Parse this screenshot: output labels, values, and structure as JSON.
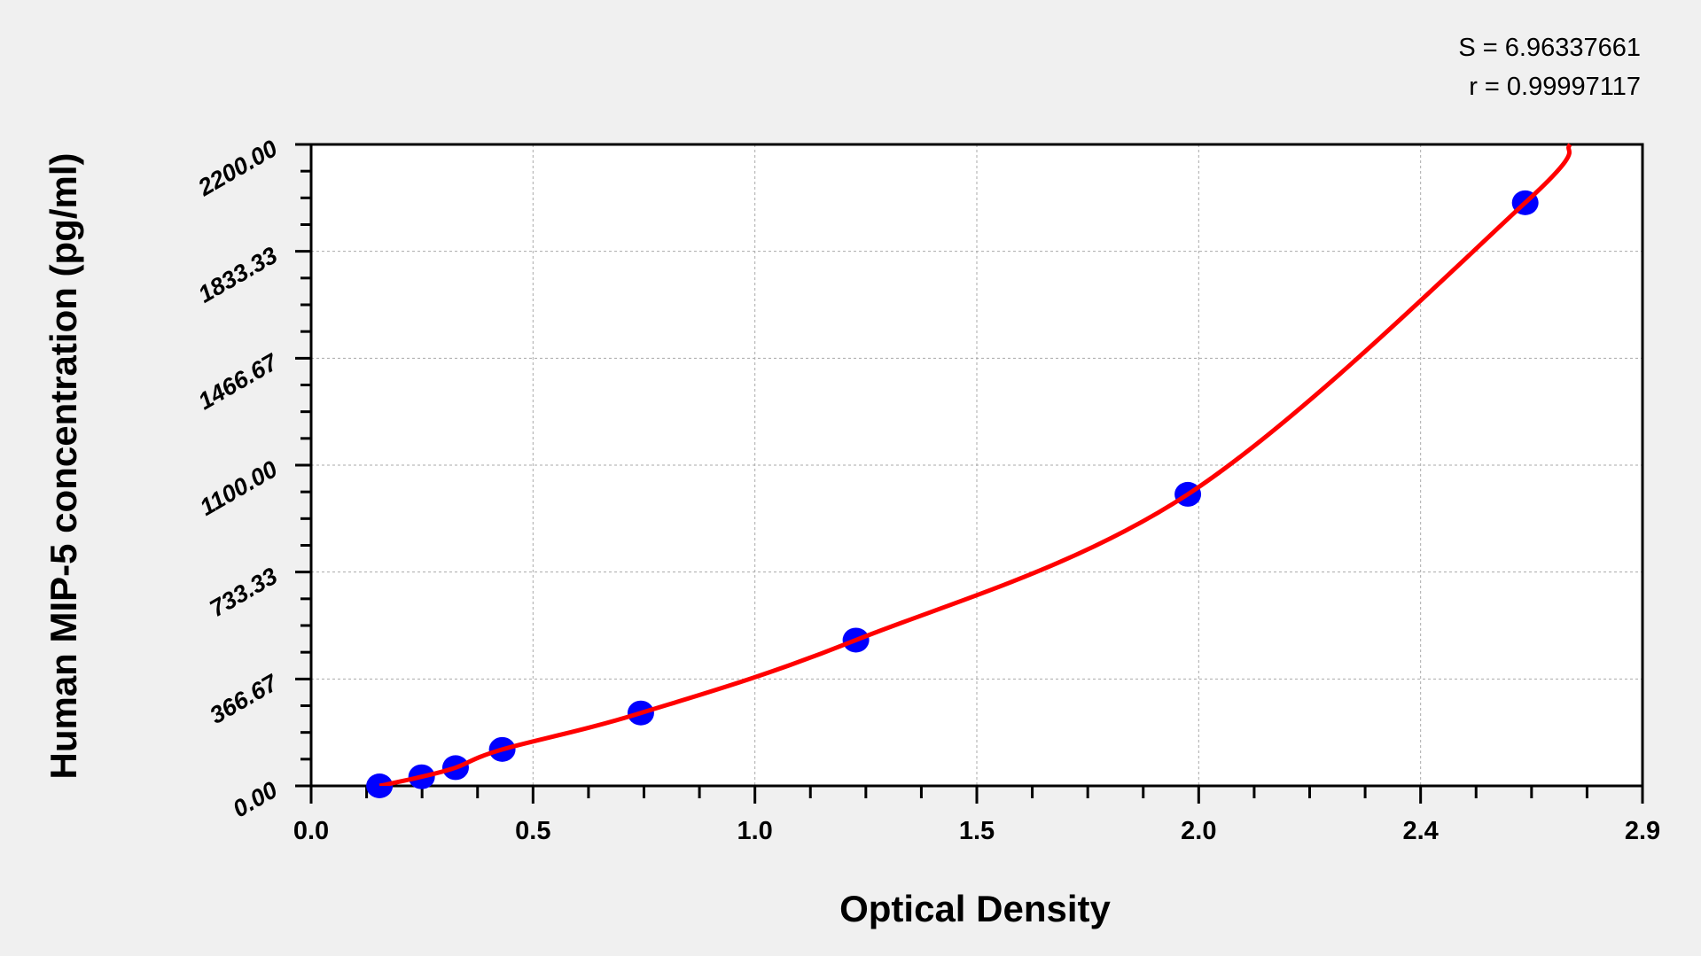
{
  "chart_data": {
    "type": "scatter",
    "xlabel": "Optical Density",
    "ylabel": "Human MIP-5 concentration (pg/ml)",
    "xlim": [
      0,
      2.94
    ],
    "ylim": [
      0,
      2200
    ],
    "x_tick_values": [
      0,
      0.49,
      0.98,
      1.47,
      1.96,
      2.45,
      2.94
    ],
    "x_tick_labels": [
      "0.0",
      "0.5",
      "1.0",
      "1.5",
      "2.0",
      "2.4",
      "2.9"
    ],
    "y_tick_values": [
      0,
      366.67,
      733.33,
      1100,
      1466.67,
      1833.33,
      2200
    ],
    "y_tick_labels": [
      "0.00",
      "366.67",
      "733.33",
      "1100.00",
      "1466.67",
      "1833.33",
      "2200.00"
    ],
    "grid": true,
    "points": {
      "x": [
        0.151,
        0.244,
        0.319,
        0.422,
        0.728,
        1.203,
        1.936,
        2.681
      ],
      "y": [
        0,
        31.25,
        62.5,
        125,
        250,
        500,
        1000,
        2000
      ],
      "color": "#0000ff"
    },
    "fit_curve": {
      "x": [
        0.151,
        0.244,
        0.319,
        0.422,
        0.728,
        1.203,
        1.936,
        2.681,
        2.78
      ],
      "y": [
        0,
        31.25,
        62.5,
        125,
        250,
        500,
        1000,
        2000,
        2200
      ],
      "color": "#ff0000"
    },
    "annotations": [
      "S = 6.96337661",
      "r = 0.99997117"
    ]
  }
}
